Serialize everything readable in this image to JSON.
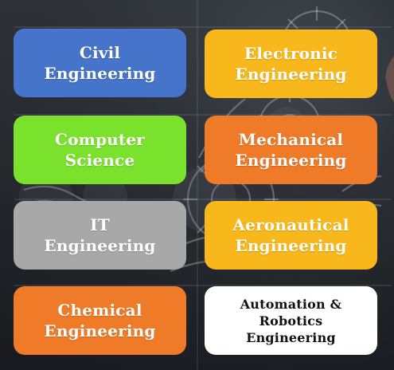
{
  "tiles": [
    {
      "label": "Civil\nEngineering",
      "color": "#4674ca"
    },
    {
      "label": "Electronic\nEngineering",
      "color": "#f8b81b"
    },
    {
      "label": "Computer\nScience",
      "color": "#7ae22d"
    },
    {
      "label": "Mechanical\nEngineering",
      "color": "#ef7a28"
    },
    {
      "label": "IT\nEngineering",
      "color": "#a8a8a8"
    },
    {
      "label": "Aeronautical\nEngineering",
      "color": "#f8b81b"
    },
    {
      "label": "Chemical\nEngineering",
      "color": "#ef7a28"
    },
    {
      "label": "Automation & Robotics\nEngineering",
      "color": "#ffffff"
    }
  ]
}
